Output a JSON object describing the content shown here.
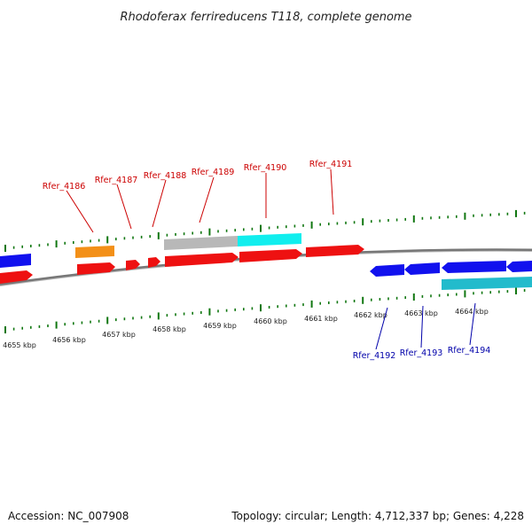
{
  "title": "Rhodoferax ferrireducens T118, complete genome",
  "footer": {
    "accession": "Accession: NC_007908",
    "stats": "Topology: circular; Length: 4,712,337 bp; Genes: 4,228"
  },
  "scale": {
    "labels": [
      "4655 kbp",
      "4656 kbp",
      "4657 kbp",
      "4658 kbp",
      "4659 kbp",
      "4660 kbp",
      "4661 kbp",
      "4662 kbp",
      "4663 kbp",
      "4664 kbp"
    ]
  },
  "colors": {
    "forward_gene": "#ee1111",
    "reverse_gene": "#1111ee",
    "orange_feature": "#f39018",
    "gray_feature": "#b8b8b8",
    "cyan_feature": "#11eeee",
    "teal_feature": "#22bbcc",
    "tick": "#117711",
    "backbone": "#777777",
    "forward_label": "#cc0000",
    "reverse_label": "#0000aa"
  },
  "gene_labels": {
    "forward": [
      "Rfer_4186",
      "Rfer_4187",
      "Rfer_4188",
      "Rfer_4189",
      "Rfer_4190",
      "Rfer_4191"
    ],
    "reverse": [
      "Rfer_4192",
      "Rfer_4193",
      "Rfer_4194"
    ]
  }
}
